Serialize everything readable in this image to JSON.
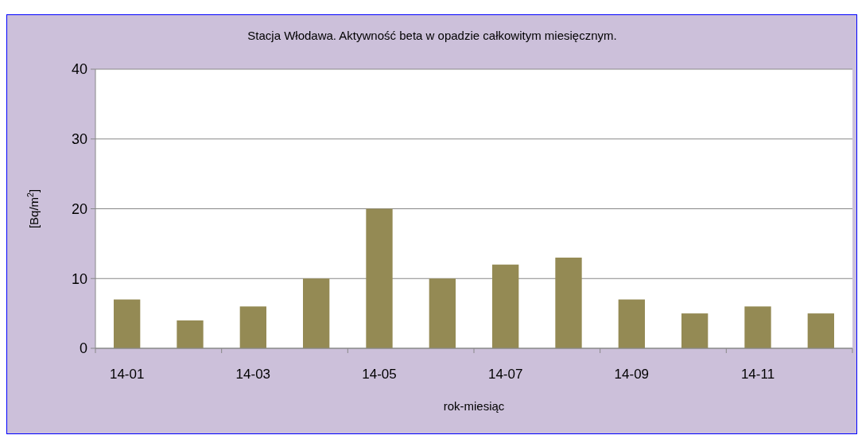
{
  "chart_data": {
    "type": "bar",
    "title": "Stacja Włodawa. Aktywność beta w opadzie całkowitym miesięcznym.",
    "xlabel": "rok-miesiąc",
    "ylabel": "[Bq/m$^{2}$]",
    "categories": [
      "14-01",
      null,
      "14-03",
      null,
      "14-05",
      null,
      "14-07",
      null,
      "14-09",
      null,
      "14-11",
      null
    ],
    "values": [
      7,
      4,
      6,
      10,
      20,
      10,
      12,
      13,
      7,
      5,
      6,
      5
    ],
    "color": "#948a54",
    "ylim": [
      0,
      40
    ],
    "yticks": [
      0,
      10,
      20,
      30,
      40
    ],
    "grid": "y"
  }
}
